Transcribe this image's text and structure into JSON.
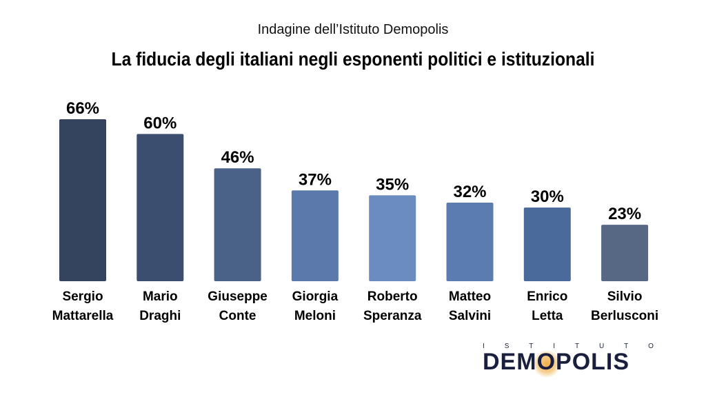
{
  "header": {
    "subtitle": "Indagine dell’Istituto Demopolis",
    "title": "La fiducia degli italiani negli esponenti politici e istituzionali"
  },
  "chart_data": {
    "type": "bar",
    "title": "La fiducia degli italiani negli esponenti politici e istituzionali",
    "subtitle": "Indagine dell’Istituto Demopolis",
    "categories": [
      [
        "Sergio",
        "Mattarella"
      ],
      [
        "Mario",
        "Draghi"
      ],
      [
        "Giuseppe",
        "Conte"
      ],
      [
        "Giorgia",
        "Meloni"
      ],
      [
        "Roberto",
        "Speranza"
      ],
      [
        "Matteo",
        "Salvini"
      ],
      [
        "Enrico",
        "Letta"
      ],
      [
        "Silvio",
        "Berlusconi"
      ]
    ],
    "values": [
      66,
      60,
      46,
      37,
      35,
      32,
      30,
      23
    ],
    "labels": [
      "66%",
      "60%",
      "46%",
      "37%",
      "35%",
      "32%",
      "30%",
      "23%"
    ],
    "colors": [
      "#34435e",
      "#3c4e70",
      "#4a6188",
      "#5b7aab",
      "#6a8cc0",
      "#5a7cb0",
      "#4b6a9c",
      "#566884"
    ],
    "ylim": [
      0,
      66
    ],
    "grid": false,
    "legend": "none"
  },
  "logo": {
    "top_letters": [
      "I",
      "S",
      "T",
      "I",
      "T",
      "U",
      "T",
      "O"
    ],
    "word_before": "DEM",
    "word_o": "O",
    "word_after": "POLIS"
  }
}
